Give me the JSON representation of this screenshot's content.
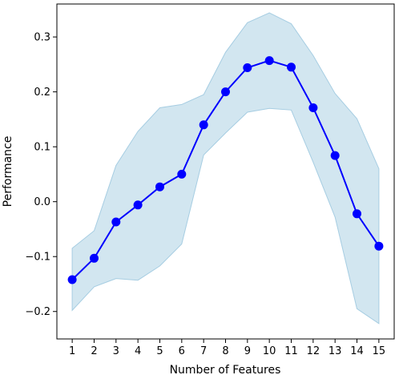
{
  "chart_data": {
    "type": "line",
    "title": "",
    "xlabel": "Number of Features",
    "ylabel": "Performance",
    "x": [
      1,
      2,
      3,
      4,
      5,
      6,
      7,
      8,
      9,
      10,
      11,
      12,
      13,
      14,
      15
    ],
    "series": [
      {
        "values": [
          -0.142,
          -0.103,
          -0.037,
          -0.006,
          0.027,
          0.05,
          0.14,
          0.2,
          0.244,
          0.257,
          0.245,
          0.171,
          0.084,
          -0.022,
          -0.081
        ],
        "color": "#0000ff"
      }
    ],
    "band": {
      "lower": [
        -0.198,
        -0.155,
        -0.14,
        -0.143,
        -0.117,
        -0.077,
        0.085,
        0.125,
        0.163,
        0.17,
        0.167,
        0.072,
        -0.028,
        -0.195,
        -0.222
      ],
      "upper": [
        -0.085,
        -0.053,
        0.066,
        0.128,
        0.171,
        0.177,
        0.195,
        0.272,
        0.326,
        0.344,
        0.324,
        0.266,
        0.197,
        0.151,
        0.06
      ],
      "color": "#a6cde2"
    },
    "xticks": [
      "1",
      "2",
      "3",
      "4",
      "5",
      "6",
      "7",
      "8",
      "9",
      "10",
      "11",
      "12",
      "13",
      "14",
      "15"
    ],
    "yticks": [
      "−0.2",
      "−0.1",
      "0.0",
      "0.1",
      "0.2",
      "0.3"
    ],
    "ytick_values": [
      -0.2,
      -0.1,
      0.0,
      0.1,
      0.2,
      0.3
    ],
    "xlim": [
      0.3,
      15.7
    ],
    "ylim": [
      -0.25,
      0.36
    ],
    "grid": false,
    "legend": "none"
  }
}
